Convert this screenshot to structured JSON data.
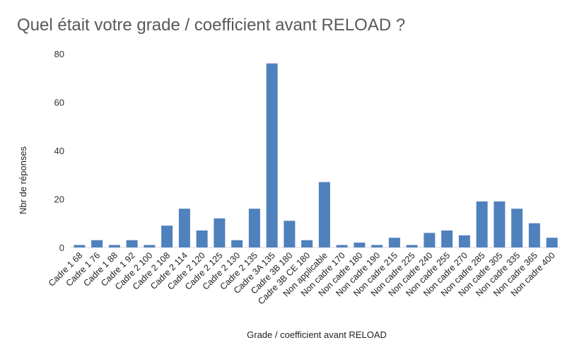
{
  "chart_data": {
    "type": "bar",
    "title": "Quel était votre grade / coefficient avant RELOAD ?",
    "xlabel": "Grade / coefficient avant RELOAD",
    "ylabel": "Nbr de réponses",
    "ylim": [
      0,
      80
    ],
    "yticks": [
      0,
      20,
      40,
      60,
      80
    ],
    "grid": false,
    "legend": "none",
    "bar_color": "#4f81bd",
    "categories": [
      "Cadre 1 68",
      "Cadre 1 76",
      "Cadre 1 88",
      "Cadre 1 92",
      "Cadre 2 100",
      "Cadre 2 108",
      "Cadre 2 114",
      "Cadre 2 120",
      "Cadre 2 125",
      "Cadre 2 130",
      "Cadre 2 135",
      "Cadre 3A 135",
      "Cadre 3B 180",
      "Cadre 3B CE 180",
      "Non applicable",
      "Non cadre 170",
      "Non cadre 180",
      "Non cadre 190",
      "Non cadre 215",
      "Non cadre 225",
      "Non cadre 240",
      "Non cadre 255",
      "Non cadre 270",
      "Non cadre 285",
      "Non cadre 305",
      "Non cadre 335",
      "Non cadre 365",
      "Non cadre 400"
    ],
    "values": [
      1,
      3,
      1,
      3,
      1,
      9,
      16,
      7,
      12,
      3,
      16,
      76,
      11,
      3,
      27,
      1,
      2,
      1,
      4,
      1,
      6,
      7,
      5,
      19,
      19,
      16,
      10,
      4
    ]
  }
}
